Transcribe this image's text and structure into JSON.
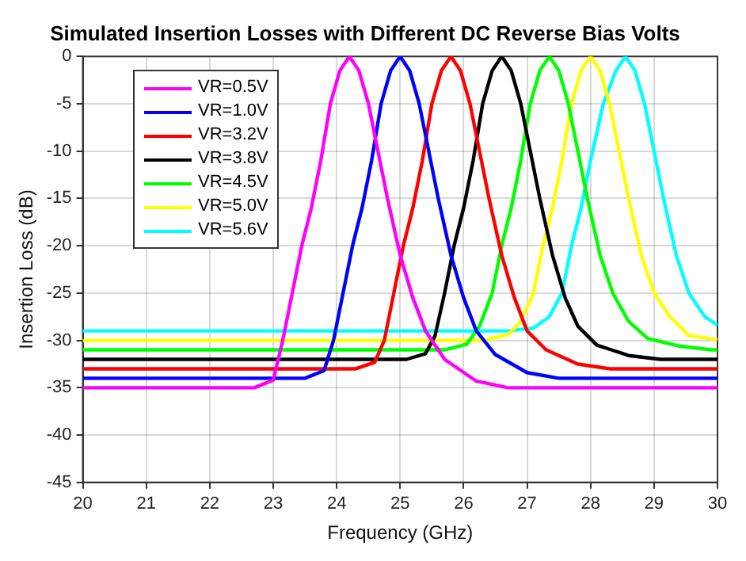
{
  "chart_data": {
    "type": "line",
    "title": "Simulated Insertion Losses with Different DC Reverse Bias Volts",
    "xlabel": "Frequency (GHz)",
    "ylabel": "Insertion Loss (dB)",
    "xlim": [
      20,
      30
    ],
    "xticks": [
      20,
      21,
      22,
      23,
      24,
      25,
      26,
      27,
      28,
      29,
      30
    ],
    "ylim": [
      -45,
      0
    ],
    "yticks": [
      -45,
      -40,
      -35,
      -30,
      -25,
      -20,
      -15,
      -10,
      -5,
      0
    ],
    "grid": true,
    "legend": "top left",
    "line_style": "solid",
    "marker": "none",
    "series": [
      {
        "name": "VR=0.5V",
        "color": "#ff00ff",
        "x": [
          20,
          22.7,
          23.0,
          23.15,
          23.3,
          23.45,
          23.6,
          23.75,
          23.9,
          24.05,
          24.2,
          24.35,
          24.5,
          24.65,
          24.8,
          25.0,
          25.2,
          25.4,
          25.7,
          26.2,
          26.7,
          30
        ],
        "values": [
          -35,
          -35,
          -34.2,
          -30,
          -25,
          -20,
          -16,
          -11,
          -5,
          -1.5,
          0,
          -1.5,
          -5,
          -10,
          -15,
          -21,
          -25.5,
          -29,
          -32,
          -34.3,
          -35,
          -35
        ]
      },
      {
        "name": "VR=1.0V",
        "color": "#0000ff",
        "x": [
          20,
          23.5,
          23.8,
          23.95,
          24.1,
          24.25,
          24.4,
          24.55,
          24.7,
          24.85,
          25.0,
          25.15,
          25.3,
          25.45,
          25.6,
          25.8,
          26.0,
          26.2,
          26.5,
          27.0,
          27.5,
          30
        ],
        "values": [
          -34,
          -34,
          -33.2,
          -30,
          -25,
          -20,
          -16,
          -11,
          -5,
          -1.5,
          0,
          -1.5,
          -5,
          -10,
          -15,
          -21,
          -25.5,
          -29,
          -31.5,
          -33.4,
          -34,
          -34
        ]
      },
      {
        "name": "VR=3.2V",
        "color": "#ff0000",
        "x": [
          20,
          24.3,
          24.6,
          24.75,
          24.9,
          25.05,
          25.2,
          25.35,
          25.5,
          25.65,
          25.8,
          25.95,
          26.1,
          26.25,
          26.4,
          26.6,
          26.8,
          27.0,
          27.3,
          27.8,
          28.3,
          30
        ],
        "values": [
          -33,
          -33,
          -32.3,
          -30,
          -25,
          -20,
          -16,
          -11,
          -5,
          -1.5,
          0,
          -1.5,
          -5,
          -10,
          -15,
          -21,
          -25.5,
          -29,
          -31,
          -32.5,
          -33,
          -33
        ]
      },
      {
        "name": "VR=3.8V",
        "color": "#000000",
        "x": [
          20,
          25.1,
          25.4,
          25.55,
          25.7,
          25.85,
          26.0,
          26.15,
          26.3,
          26.45,
          26.6,
          26.75,
          26.9,
          27.05,
          27.2,
          27.4,
          27.6,
          27.8,
          28.1,
          28.6,
          29.1,
          30
        ],
        "values": [
          -32,
          -32,
          -31.4,
          -29.5,
          -25,
          -20,
          -16,
          -11,
          -5,
          -1.5,
          0,
          -1.5,
          -5,
          -10,
          -15,
          -21,
          -25.5,
          -28.5,
          -30.5,
          -31.6,
          -32,
          -32
        ]
      },
      {
        "name": "VR=4.5V",
        "color": "#00ff00",
        "x": [
          20,
          25.7,
          26.05,
          26.25,
          26.45,
          26.6,
          26.75,
          26.9,
          27.05,
          27.2,
          27.35,
          27.5,
          27.65,
          27.8,
          27.95,
          28.15,
          28.35,
          28.6,
          28.9,
          29.4,
          29.9,
          30
        ],
        "values": [
          -31,
          -31,
          -30.4,
          -28.5,
          -25,
          -20,
          -16,
          -11,
          -5,
          -1.5,
          0,
          -1.5,
          -5,
          -10,
          -15,
          -21,
          -25,
          -28,
          -29.8,
          -30.6,
          -31,
          -31
        ]
      },
      {
        "name": "VR=5.0V",
        "color": "#ffff00",
        "x": [
          20,
          26.3,
          26.7,
          26.9,
          27.1,
          27.25,
          27.4,
          27.55,
          27.7,
          27.85,
          28.0,
          28.15,
          28.3,
          28.45,
          28.6,
          28.8,
          29.0,
          29.25,
          29.55,
          30
        ],
        "values": [
          -30,
          -30,
          -29.4,
          -28,
          -25,
          -20,
          -16,
          -11,
          -5,
          -1.5,
          0,
          -1.5,
          -5,
          -10,
          -15,
          -21,
          -25,
          -27.5,
          -29.5,
          -29.9
        ]
      },
      {
        "name": "VR=5.6V",
        "color": "#00ffff",
        "x": [
          20,
          26.7,
          27.1,
          27.35,
          27.55,
          27.7,
          27.85,
          28.0,
          28.2,
          28.4,
          28.55,
          28.7,
          28.85,
          29.0,
          29.15,
          29.35,
          29.55,
          29.8,
          30
        ],
        "values": [
          -29,
          -29,
          -28.7,
          -27.5,
          -25,
          -20,
          -16,
          -11,
          -5,
          -1.5,
          0,
          -1.5,
          -5,
          -10,
          -15,
          -21,
          -25,
          -27.5,
          -28.4
        ]
      }
    ]
  }
}
